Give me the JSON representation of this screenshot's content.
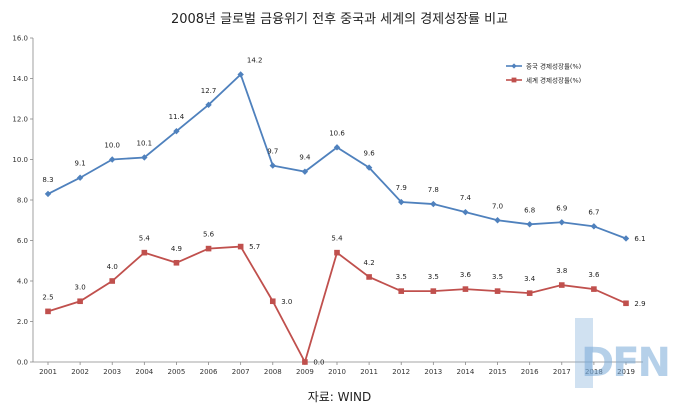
{
  "chart_data": {
    "type": "line",
    "title": "2008년 글로벌 금융위기 전후 중국과 세계의 경제성장률 비교",
    "xlabel": "",
    "ylabel": "",
    "categories": [
      "2001",
      "2002",
      "2003",
      "2004",
      "2005",
      "2006",
      "2007",
      "2008",
      "2009",
      "2010",
      "2011",
      "2012",
      "2013",
      "2014",
      "2015",
      "2016",
      "2017",
      "2018",
      "2019"
    ],
    "yticks": [
      "0.0",
      "2.0",
      "4.0",
      "6.0",
      "8.0",
      "10.0",
      "12.0",
      "14.0",
      "16.0"
    ],
    "ylim": [
      0,
      16
    ],
    "grid": false,
    "legend_position": "top-right",
    "series": [
      {
        "name": "중국 경제성장률(%)",
        "color": "#4f81bd",
        "marker": "diamond",
        "values": [
          8.3,
          9.1,
          10.0,
          10.1,
          11.4,
          12.7,
          14.2,
          9.7,
          9.4,
          10.6,
          9.6,
          7.9,
          7.8,
          7.4,
          7.0,
          6.8,
          6.9,
          6.7,
          6.1
        ],
        "labels": [
          "8.3",
          "9.1",
          "10.0",
          "10.1",
          "11.4",
          "12.7",
          "14.2",
          "9.7",
          "9.4",
          "10.6",
          "9.6",
          "7.9",
          "7.8",
          "7.4",
          "7.0",
          "6.8",
          "6.9",
          "6.7",
          "6.1"
        ]
      },
      {
        "name": "세계 경제성장률(%)",
        "color": "#c0504d",
        "marker": "square",
        "values": [
          2.5,
          3.0,
          4.0,
          5.4,
          4.9,
          5.6,
          5.7,
          3.0,
          0.0,
          5.4,
          4.2,
          3.5,
          3.5,
          3.6,
          3.5,
          3.4,
          3.8,
          3.6,
          2.9
        ],
        "labels": [
          "2.5",
          "3.0",
          "4.0",
          "5.4",
          "4.9",
          "5.6",
          "5.7",
          "3.0",
          "0.0",
          "5.4",
          "4.2",
          "3.5",
          "3.5",
          "3.6",
          "3.5",
          "3.4",
          "3.8",
          "3.6",
          "2.9"
        ]
      }
    ]
  },
  "source_note": "자료: WIND",
  "watermark": {
    "logo": "DFN"
  }
}
